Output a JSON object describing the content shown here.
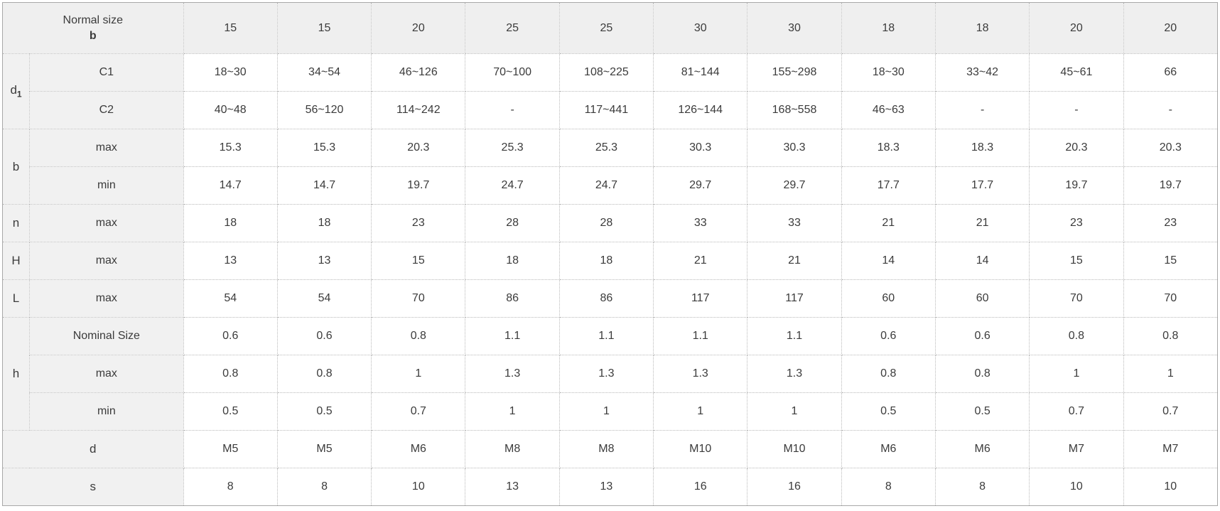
{
  "colors": {
    "header_text_blue": "#1778be",
    "corner_bg": "#d9d9d9",
    "header_bg": "#efefef",
    "label_bg": "#f1f1f1",
    "cell_bg": "#ffffff",
    "border_dotted": "#b9b9b9",
    "border_outer": "#a8a8a8",
    "text": "#3b3b3b"
  },
  "table": {
    "corner": {
      "line1": "Normal size",
      "line2": "b"
    },
    "column_headers": [
      "15",
      "15",
      "20",
      "25",
      "25",
      "30",
      "30",
      "18",
      "18",
      "20",
      "20"
    ],
    "row_groups": [
      {
        "label": "d",
        "sub": "1",
        "rows": [
          {
            "label": "C1",
            "values": [
              "18~30",
              "34~54",
              "46~126",
              "70~100",
              "108~225",
              "81~144",
              "155~298",
              "18~30",
              "33~42",
              "45~61",
              "66"
            ]
          },
          {
            "label": "C2",
            "values": [
              "40~48",
              "56~120",
              "114~242",
              "-",
              "117~441",
              "126~144",
              "168~558",
              "46~63",
              "-",
              "-",
              "-"
            ]
          }
        ]
      },
      {
        "label": "b",
        "rows": [
          {
            "label": "max",
            "values": [
              "15.3",
              "15.3",
              "20.3",
              "25.3",
              "25.3",
              "30.3",
              "30.3",
              "18.3",
              "18.3",
              "20.3",
              "20.3"
            ]
          },
          {
            "label": "min",
            "values": [
              "14.7",
              "14.7",
              "19.7",
              "24.7",
              "24.7",
              "29.7",
              "29.7",
              "17.7",
              "17.7",
              "19.7",
              "19.7"
            ]
          }
        ]
      },
      {
        "label": "n",
        "rows": [
          {
            "label": "max",
            "values": [
              "18",
              "18",
              "23",
              "28",
              "28",
              "33",
              "33",
              "21",
              "21",
              "23",
              "23"
            ]
          }
        ]
      },
      {
        "label": "H",
        "rows": [
          {
            "label": "max",
            "values": [
              "13",
              "13",
              "15",
              "18",
              "18",
              "21",
              "21",
              "14",
              "14",
              "15",
              "15"
            ]
          }
        ]
      },
      {
        "label": "L",
        "rows": [
          {
            "label": "max",
            "values": [
              "54",
              "54",
              "70",
              "86",
              "86",
              "117",
              "117",
              "60",
              "60",
              "70",
              "70"
            ]
          }
        ]
      },
      {
        "label": "h",
        "rows": [
          {
            "label": "Nominal Size",
            "values": [
              "0.6",
              "0.6",
              "0.8",
              "1.1",
              "1.1",
              "1.1",
              "1.1",
              "0.6",
              "0.6",
              "0.8",
              "0.8"
            ]
          },
          {
            "label": "max",
            "values": [
              "0.8",
              "0.8",
              "1",
              "1.3",
              "1.3",
              "1.3",
              "1.3",
              "0.8",
              "0.8",
              "1",
              "1"
            ]
          },
          {
            "label": "min",
            "values": [
              "0.5",
              "0.5",
              "0.7",
              "1",
              "1",
              "1",
              "1",
              "0.5",
              "0.5",
              "0.7",
              "0.7"
            ]
          }
        ]
      },
      {
        "label": "d",
        "full_width": true,
        "rows": [
          {
            "label": "",
            "values": [
              "M5",
              "M5",
              "M6",
              "M8",
              "M8",
              "M10",
              "M10",
              "M6",
              "M6",
              "M7",
              "M7"
            ]
          }
        ]
      },
      {
        "label": "s",
        "full_width": true,
        "rows": [
          {
            "label": "",
            "values": [
              "8",
              "8",
              "10",
              "13",
              "13",
              "16",
              "16",
              "8",
              "8",
              "10",
              "10"
            ]
          }
        ]
      }
    ]
  }
}
